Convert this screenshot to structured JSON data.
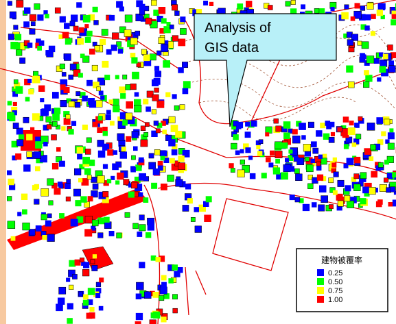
{
  "callout": {
    "lines": [
      "Analysis of",
      "GIS data"
    ]
  },
  "legend": {
    "title": "建物被覆率",
    "items": [
      {
        "label": "0.25",
        "color": "#0000ff"
      },
      {
        "label": "0.50",
        "color": "#00ff00"
      },
      {
        "label": "0.75",
        "color": "#ffff00"
      },
      {
        "label": "1.00",
        "color": "#ff0000"
      }
    ]
  }
}
